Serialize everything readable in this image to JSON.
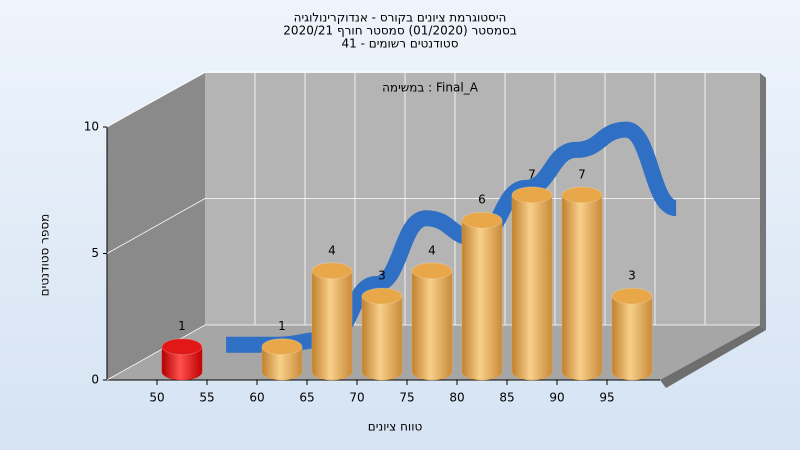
{
  "chart_data": {
    "type": "histogram",
    "title": [
      "היסטוגרמת ציונים בקורס - אנדוקרינולוגיה",
      "בסמסטר  (01/2020)  סמסטר חורף 2020/21",
      "סטודנטים רשומים - 41"
    ],
    "subtitle": "במשימה : Final_A",
    "x_label": "טווח ציונים",
    "y_label": "מספר סטודנטים",
    "bins": [
      50,
      55,
      60,
      65,
      70,
      75,
      80,
      85,
      90,
      95,
      100
    ],
    "counts": [
      1,
      null,
      1,
      4,
      3,
      4,
      6,
      7,
      7,
      3
    ],
    "bar_colors": [
      "#e01818",
      "#e8a84a",
      "#e8a84a",
      "#e8a84a",
      "#e8a84a",
      "#e8a84a",
      "#e8a84a",
      "#e8a84a",
      "#e8a84a",
      "#e8a84a"
    ],
    "curve": {
      "color": "#2f6fc4",
      "x": [
        52.5,
        57.5,
        62.5,
        67.5,
        72.5,
        77.5,
        82.5,
        87.5,
        92.5,
        97.5
      ],
      "values": [
        0.1,
        0.1,
        0.3,
        2.5,
        5.1,
        4.3,
        6.3,
        7.8,
        8.6,
        5.5
      ]
    },
    "xlim": [
      45,
      100
    ],
    "xticks": [
      50,
      55,
      60,
      65,
      70,
      75,
      80,
      85,
      90,
      95
    ],
    "ylim": [
      0,
      10
    ],
    "yticks": [
      0,
      5,
      10
    ],
    "grid": true
  }
}
